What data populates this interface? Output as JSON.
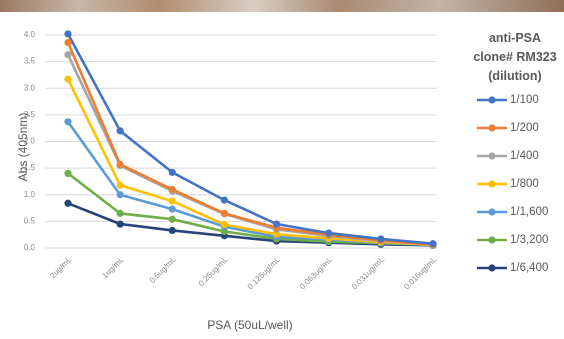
{
  "chart_data": {
    "type": "line",
    "xlabel": "PSA (50uL/well)",
    "ylabel": "Abs (405nm)",
    "ylim": [
      0,
      4.0
    ],
    "yticks": [
      "0.0",
      "0.5",
      "1.0",
      "1.5",
      "2.0",
      "2.5",
      "3.0",
      "3.5",
      "4.0"
    ],
    "grid": true,
    "legend_position": "right",
    "legend_title": [
      "anti-PSA",
      "clone# RM323",
      "(dilution)"
    ],
    "categories": [
      "2ug/mL",
      "1ug/mL",
      "0.5ug/mL",
      "0.25ug/mL",
      "0.125ug/mL",
      "0.063ug/mL",
      "0.031ug/mL",
      "0.016ug/mL"
    ],
    "series": [
      {
        "name": "1/100",
        "color": "#4472c4",
        "values": [
          4.02,
          2.2,
          1.42,
          0.9,
          0.45,
          0.28,
          0.17,
          0.08
        ]
      },
      {
        "name": "1/200",
        "color": "#ed7d31",
        "values": [
          3.86,
          1.57,
          1.1,
          0.65,
          0.38,
          0.25,
          0.14,
          0.07
        ]
      },
      {
        "name": "1/400",
        "color": "#a5a5a5",
        "values": [
          3.63,
          1.55,
          1.07,
          0.64,
          0.35,
          0.23,
          0.13,
          0.07
        ]
      },
      {
        "name": "1/800",
        "color": "#ffc000",
        "values": [
          3.17,
          1.18,
          0.88,
          0.44,
          0.26,
          0.18,
          0.11,
          0.06
        ]
      },
      {
        "name": "1/1,600",
        "color": "#5b9bd5",
        "values": [
          2.37,
          1.0,
          0.73,
          0.4,
          0.21,
          0.16,
          0.1,
          0.06
        ]
      },
      {
        "name": "1/3,200",
        "color": "#70ad47",
        "values": [
          1.4,
          0.65,
          0.54,
          0.31,
          0.17,
          0.12,
          0.09,
          0.06
        ]
      },
      {
        "name": "1/6,400",
        "color": "#264478",
        "values": [
          0.84,
          0.45,
          0.33,
          0.23,
          0.13,
          0.1,
          0.07,
          0.05
        ]
      }
    ]
  }
}
